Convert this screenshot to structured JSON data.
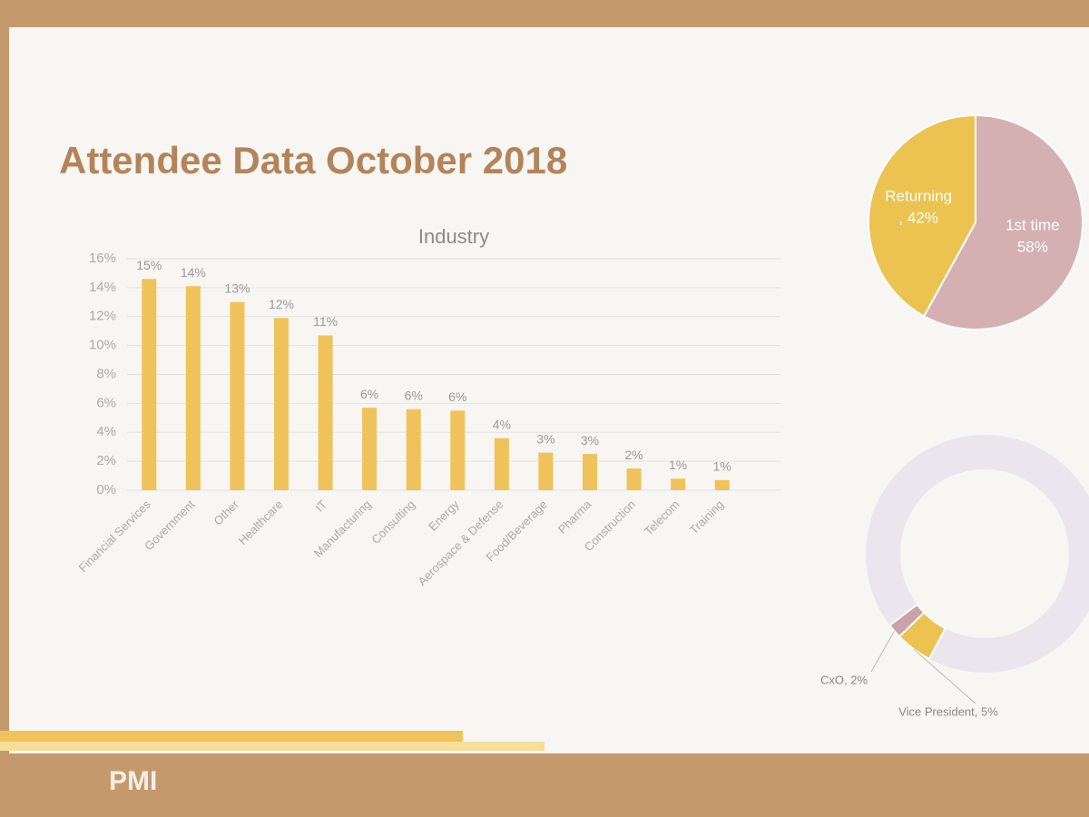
{
  "title": "Attendee Data October 2018",
  "footer_logo": "PMI",
  "chart_data": [
    {
      "type": "bar",
      "title": "Industry",
      "color": "#f0c35a",
      "categories": [
        "Financial Services",
        "Government",
        "Other",
        "Healthcare",
        "IT",
        "Manufacturing",
        "Consulting",
        "Energy",
        "Aerospace & Defense",
        "Food/Beverage",
        "Pharma",
        "Construction",
        "Telecom",
        "Training"
      ],
      "values": [
        14.6,
        14.1,
        13.0,
        11.9,
        10.7,
        5.7,
        5.6,
        5.5,
        3.6,
        2.6,
        2.5,
        1.5,
        0.8,
        0.7
      ],
      "value_labels": [
        "15%",
        "14%",
        "13%",
        "12%",
        "11%",
        "6%",
        "6%",
        "6%",
        "4%",
        "3%",
        "3%",
        "2%",
        "1%",
        "1%"
      ],
      "ylim": [
        0,
        16
      ],
      "yticks": [
        {
          "value": 0,
          "label": "0%"
        },
        {
          "value": 2,
          "label": "2%"
        },
        {
          "value": 4,
          "label": "4%"
        },
        {
          "value": 6,
          "label": "6%"
        },
        {
          "value": 8,
          "label": "8%"
        },
        {
          "value": 10,
          "label": "10%"
        },
        {
          "value": 12,
          "label": "12%"
        },
        {
          "value": 14,
          "label": "14%"
        },
        {
          "value": 16,
          "label": "16%"
        }
      ],
      "grid": true
    },
    {
      "type": "pie",
      "categories": [
        "1st time",
        "Returning"
      ],
      "values": [
        58,
        42
      ],
      "value_labels": [
        "58%",
        ", 42%"
      ],
      "colors": [
        "#d4b0b2",
        "#ecc350"
      ]
    },
    {
      "type": "donut",
      "values": [
        2,
        5
      ],
      "value_labels": [
        "CxO, 2%",
        "Vice President, 5%"
      ],
      "colors": [
        "#c9a3a8",
        "#ecc350"
      ]
    }
  ]
}
